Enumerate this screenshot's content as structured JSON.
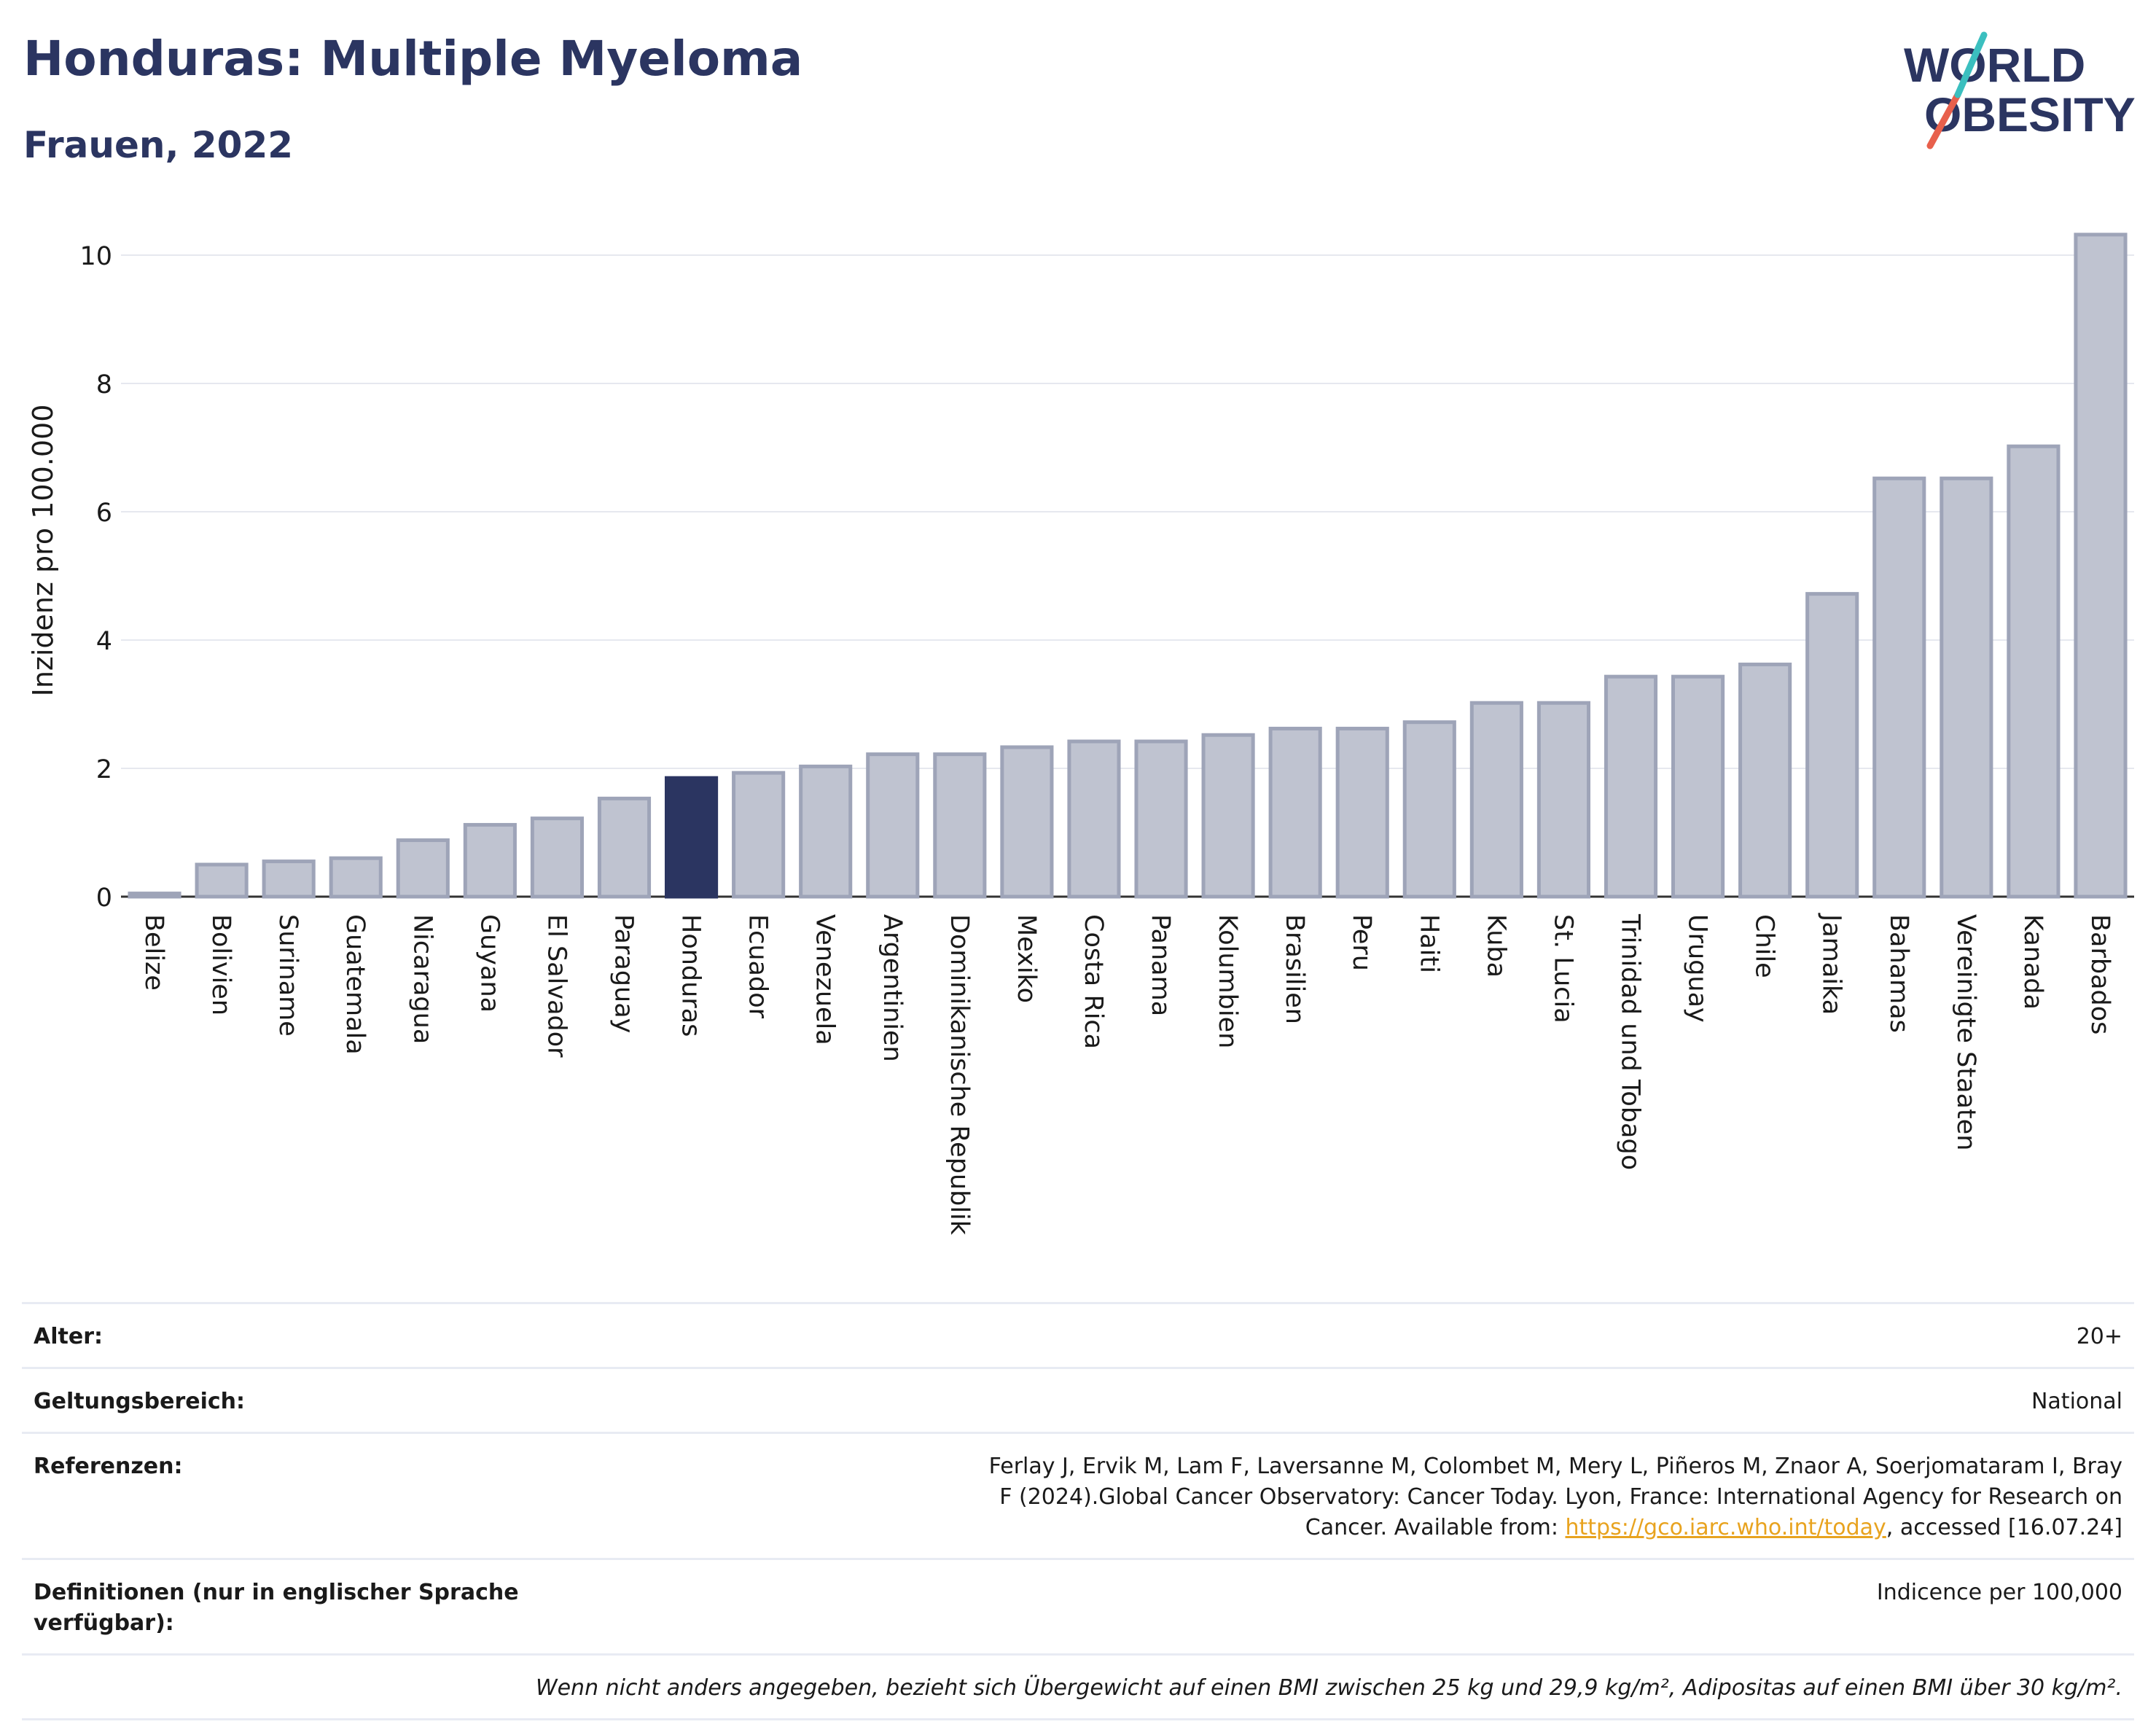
{
  "header": {
    "title": "Honduras: Multiple Myeloma",
    "subtitle": "Frauen, 2022"
  },
  "logo": {
    "line1": "WORLD",
    "line2": "OBESITY"
  },
  "chart_data": {
    "type": "bar",
    "ylabel": "Inzidenz pro 100.000",
    "ylim": [
      0,
      10.5
    ],
    "yticks": [
      0,
      2,
      4,
      6,
      8,
      10
    ],
    "grid": true,
    "highlight": "Honduras",
    "colors": {
      "bar": "#bfc3d0",
      "bar_border": "#9ea4b8",
      "highlight": "#2b3561"
    },
    "categories": [
      "Belize",
      "Bolivien",
      "Suriname",
      "Guatemala",
      "Nicaragua",
      "Guyana",
      "El Salvador",
      "Paraguay",
      "Honduras",
      "Ecuador",
      "Venezuela",
      "Argentinien",
      "Dominikanische Republik",
      "Mexiko",
      "Costa Rica",
      "Panama",
      "Kolumbien",
      "Brasilien",
      "Peru",
      "Haiti",
      "Kuba",
      "St. Lucia",
      "Trinidad und Tobago",
      "Uruguay",
      "Chile",
      "Jamaika",
      "Bahamas",
      "Vereinigte Staaten",
      "Kanada",
      "Barbados"
    ],
    "values": [
      0.05,
      0.5,
      0.55,
      0.6,
      0.88,
      1.12,
      1.22,
      1.53,
      1.85,
      1.93,
      2.03,
      2.22,
      2.22,
      2.33,
      2.42,
      2.42,
      2.52,
      2.62,
      2.62,
      2.72,
      3.02,
      3.02,
      3.43,
      3.43,
      3.62,
      4.72,
      6.52,
      6.52,
      7.02,
      10.32
    ]
  },
  "info": {
    "age_label": "Alter:",
    "age_value": "20+",
    "scope_label": "Geltungsbereich:",
    "scope_value": "National",
    "ref_label": "Referenzen:",
    "ref_text_1": "Ferlay J, Ervik M, Lam F, Laversanne M, Colombet M, Mery L, Piñeros M, Znaor A, Soerjomataram I, Bray F (2024).Global Cancer Observatory: Cancer Today. Lyon, France: International Agency for Research on Cancer. Available from: ",
    "ref_link": "https://gco.iarc.who.int/today",
    "ref_text_2": ", accessed [16.07.24]",
    "def_label": "Definitionen (nur in englischer Sprache verfügbar):",
    "def_value": "Indicence per 100,000",
    "note": "Wenn nicht anders angegeben, bezieht sich Übergewicht auf einen BMI zwischen 25 kg und 29,9 kg/m², Adipositas auf einen BMI über 30 kg/m²."
  }
}
